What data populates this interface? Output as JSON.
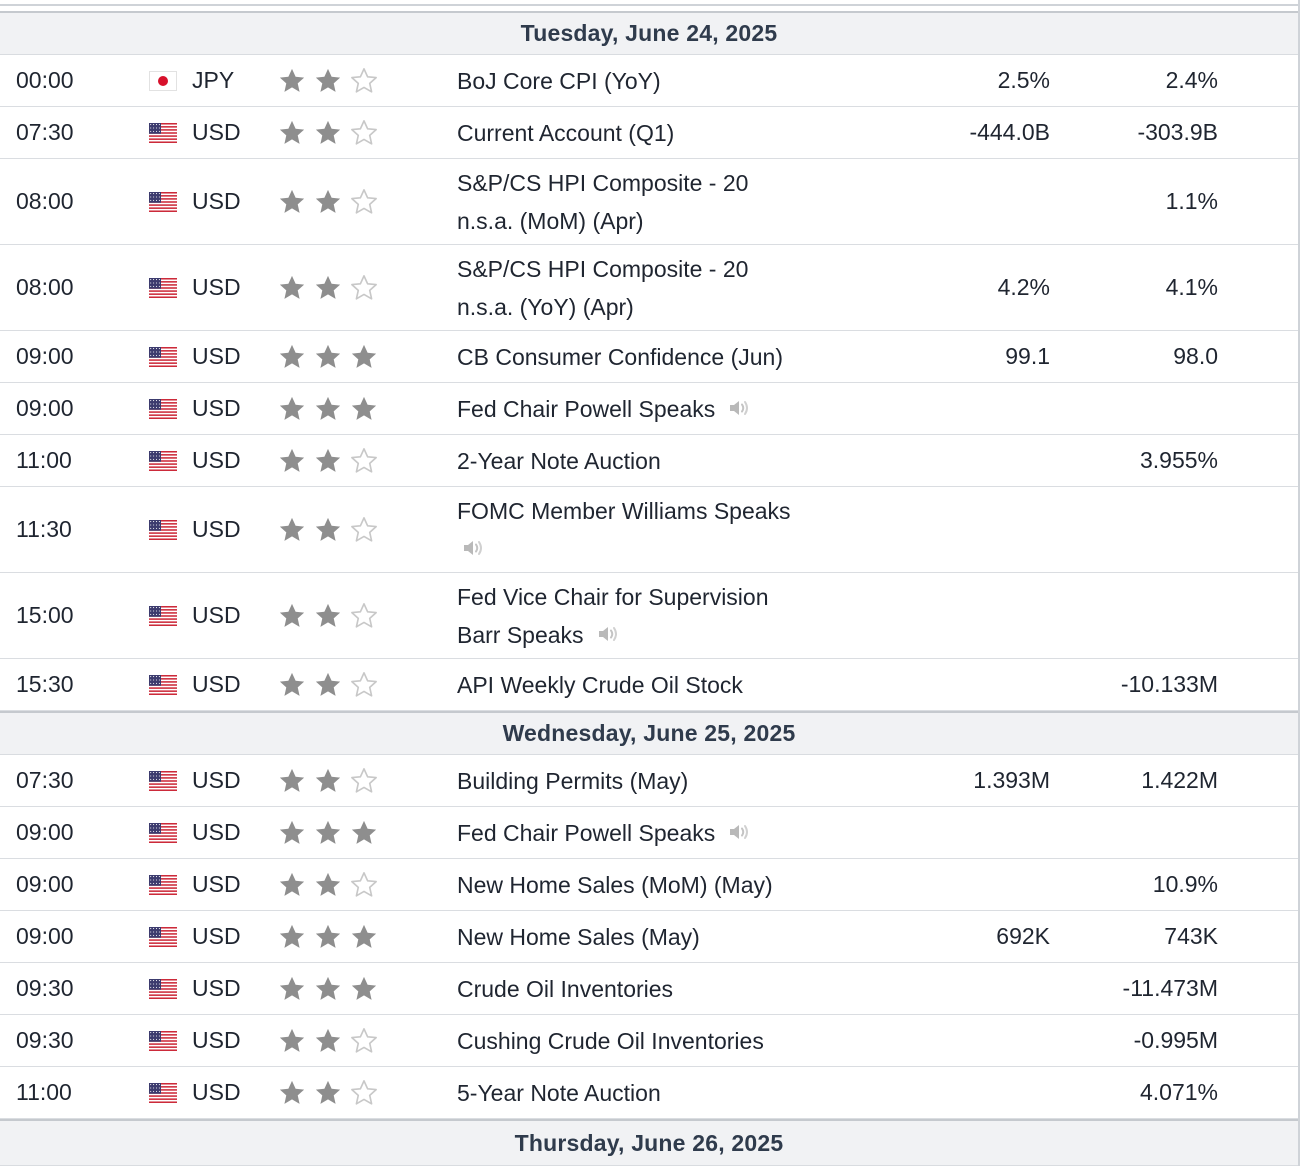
{
  "colors": {
    "header_bg": "#f1f2f4",
    "header_text": "#2f3b4c",
    "star_filled": "#8e8e8e",
    "star_empty": "#c8c8c8",
    "row_border": "#dadde1"
  },
  "days": [
    {
      "date": "Tuesday, June 24, 2025",
      "events": [
        {
          "time": "00:00",
          "flag": "jp-flag-icon",
          "currency": "JPY",
          "importance": 2,
          "event": "BoJ Core CPI (YoY)",
          "forecast": "2.5%",
          "previous": "2.4%"
        },
        {
          "time": "07:30",
          "flag": "us-flag-icon",
          "currency": "USD",
          "importance": 2,
          "event": "Current Account (Q1)",
          "forecast": "-444.0B",
          "previous": "-303.9B"
        },
        {
          "time": "08:00",
          "flag": "us-flag-icon",
          "currency": "USD",
          "importance": 2,
          "event_lines": [
            "S&P/CS HPI Composite - 20",
            "n.s.a. (MoM) (Apr)"
          ],
          "forecast": "",
          "previous": "1.1%"
        },
        {
          "time": "08:00",
          "flag": "us-flag-icon",
          "currency": "USD",
          "importance": 2,
          "event_lines": [
            "S&P/CS HPI Composite - 20",
            "n.s.a. (YoY) (Apr)"
          ],
          "forecast": "4.2%",
          "previous": "4.1%"
        },
        {
          "time": "09:00",
          "flag": "us-flag-icon",
          "currency": "USD",
          "importance": 3,
          "event": "CB Consumer Confidence (Jun)",
          "forecast": "99.1",
          "previous": "98.0"
        },
        {
          "time": "09:00",
          "flag": "us-flag-icon",
          "currency": "USD",
          "importance": 3,
          "event": "Fed Chair Powell Speaks",
          "speech": true,
          "forecast": "",
          "previous": ""
        },
        {
          "time": "11:00",
          "flag": "us-flag-icon",
          "currency": "USD",
          "importance": 2,
          "event": "2-Year Note Auction",
          "forecast": "",
          "previous": "3.955%"
        },
        {
          "time": "11:30",
          "flag": "us-flag-icon",
          "currency": "USD",
          "importance": 2,
          "event_lines": [
            "FOMC Member Williams Speaks",
            ""
          ],
          "speech": true,
          "forecast": "",
          "previous": ""
        },
        {
          "time": "15:00",
          "flag": "us-flag-icon",
          "currency": "USD",
          "importance": 2,
          "event_lines": [
            "Fed Vice Chair for Supervision",
            "Barr Speaks"
          ],
          "speech": true,
          "forecast": "",
          "previous": ""
        },
        {
          "time": "15:30",
          "flag": "us-flag-icon",
          "currency": "USD",
          "importance": 2,
          "event": "API Weekly Crude Oil Stock",
          "forecast": "",
          "previous": "-10.133M"
        }
      ]
    },
    {
      "date": "Wednesday, June 25, 2025",
      "events": [
        {
          "time": "07:30",
          "flag": "us-flag-icon",
          "currency": "USD",
          "importance": 2,
          "event": "Building Permits (May)",
          "forecast": "1.393M",
          "previous": "1.422M"
        },
        {
          "time": "09:00",
          "flag": "us-flag-icon",
          "currency": "USD",
          "importance": 3,
          "event": "Fed Chair Powell Speaks",
          "speech": true,
          "forecast": "",
          "previous": ""
        },
        {
          "time": "09:00",
          "flag": "us-flag-icon",
          "currency": "USD",
          "importance": 2,
          "event": "New Home Sales (MoM) (May)",
          "forecast": "",
          "previous": "10.9%"
        },
        {
          "time": "09:00",
          "flag": "us-flag-icon",
          "currency": "USD",
          "importance": 3,
          "event": "New Home Sales (May)",
          "forecast": "692K",
          "previous": "743K"
        },
        {
          "time": "09:30",
          "flag": "us-flag-icon",
          "currency": "USD",
          "importance": 3,
          "event": "Crude Oil Inventories",
          "forecast": "",
          "previous": "-11.473M"
        },
        {
          "time": "09:30",
          "flag": "us-flag-icon",
          "currency": "USD",
          "importance": 2,
          "event": "Cushing Crude Oil Inventories",
          "forecast": "",
          "previous": "-0.995M"
        },
        {
          "time": "11:00",
          "flag": "us-flag-icon",
          "currency": "USD",
          "importance": 2,
          "event": "5-Year Note Auction",
          "forecast": "",
          "previous": "4.071%"
        }
      ]
    },
    {
      "date": "Thursday, June 26, 2025",
      "events": []
    }
  ]
}
